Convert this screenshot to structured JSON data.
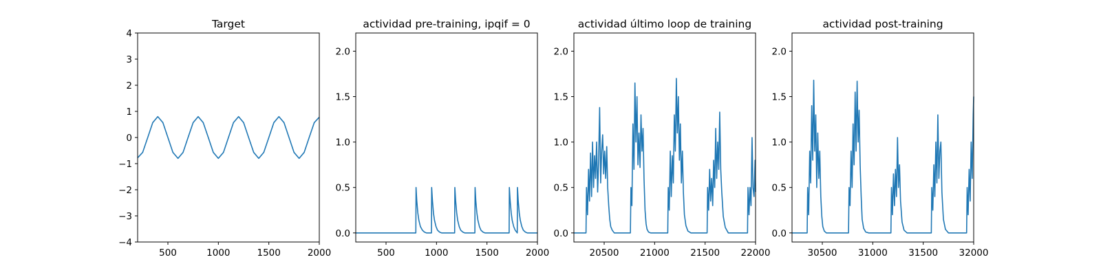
{
  "chart_data": [
    {
      "type": "line",
      "title": "Target",
      "xlabel": "",
      "ylabel": "",
      "xlim": [
        200,
        2000
      ],
      "ylim": [
        -4,
        4
      ],
      "xticks": [
        500,
        1000,
        1500,
        2000
      ],
      "yticks": [
        -4,
        -3,
        -2,
        -1,
        0,
        1,
        2,
        3,
        4
      ],
      "xtick_labels": [
        "500",
        "1000",
        "1500",
        "2000"
      ],
      "ytick_labels": [
        "−4",
        "−3",
        "−2",
        "−1",
        "0",
        "1",
        "2",
        "3",
        "4"
      ],
      "series": [
        {
          "color": "#1f77b4",
          "x": [
            200,
            250,
            300,
            350,
            400,
            450,
            500,
            550,
            600,
            650,
            700,
            750,
            800,
            850,
            900,
            950,
            1000,
            1050,
            1100,
            1150,
            1200,
            1250,
            1300,
            1350,
            1400,
            1450,
            1500,
            1550,
            1600,
            1650,
            1700,
            1750,
            1800,
            1850,
            1900,
            1950,
            2000
          ],
          "y": [
            -0.78,
            -0.57,
            0.0,
            0.57,
            0.8,
            0.57,
            0.0,
            -0.57,
            -0.8,
            -0.57,
            0.0,
            0.57,
            0.8,
            0.57,
            0.0,
            -0.57,
            -0.8,
            -0.57,
            0.0,
            0.57,
            0.8,
            0.57,
            0.0,
            -0.57,
            -0.8,
            -0.57,
            0.0,
            0.57,
            0.8,
            0.57,
            0.0,
            -0.57,
            -0.8,
            -0.57,
            0.0,
            0.57,
            0.78
          ]
        }
      ]
    },
    {
      "type": "line",
      "title": "actividad pre-training, ipqif = 0",
      "xlabel": "",
      "ylabel": "",
      "xlim": [
        200,
        2000
      ],
      "ylim": [
        -0.1,
        2.2
      ],
      "xticks": [
        500,
        1000,
        1500,
        2000
      ],
      "yticks": [
        0.0,
        0.5,
        1.0,
        1.5,
        2.0
      ],
      "xtick_labels": [
        "500",
        "1000",
        "1500",
        "2000"
      ],
      "ytick_labels": [
        "0.0",
        "0.5",
        "1.0",
        "1.5",
        "2.0"
      ],
      "series": [
        {
          "color": "#1f77b4",
          "x": [
            200,
            795,
            797,
            805,
            815,
            825,
            840,
            860,
            880,
            900,
            950,
            952,
            960,
            970,
            980,
            995,
            1010,
            1030,
            1050,
            1180,
            1182,
            1190,
            1200,
            1210,
            1225,
            1240,
            1260,
            1280,
            1300,
            1380,
            1382,
            1390,
            1400,
            1410,
            1425,
            1440,
            1460,
            1480,
            1500,
            1720,
            1722,
            1730,
            1740,
            1750,
            1765,
            1780,
            1800,
            1802,
            1810,
            1820,
            1830,
            1845,
            1860,
            1880,
            1900,
            1920,
            2000
          ],
          "y": [
            0.0,
            0.0,
            0.5,
            0.35,
            0.22,
            0.14,
            0.07,
            0.03,
            0.01,
            0.0,
            0.0,
            0.5,
            0.35,
            0.22,
            0.14,
            0.07,
            0.03,
            0.01,
            0.0,
            0.0,
            0.5,
            0.35,
            0.22,
            0.14,
            0.07,
            0.03,
            0.01,
            0.0,
            0.0,
            0.0,
            0.5,
            0.35,
            0.22,
            0.14,
            0.07,
            0.03,
            0.01,
            0.0,
            0.0,
            0.0,
            0.5,
            0.35,
            0.22,
            0.14,
            0.07,
            0.03,
            0.0,
            0.5,
            0.35,
            0.22,
            0.14,
            0.07,
            0.03,
            0.01,
            0.0,
            0.0,
            0.0
          ]
        }
      ]
    },
    {
      "type": "line",
      "title": "actividad último loop de training",
      "xlabel": "",
      "ylabel": "",
      "xlim": [
        20200,
        22000
      ],
      "ylim": [
        -0.1,
        2.2
      ],
      "xticks": [
        20500,
        21000,
        21500,
        22000
      ],
      "yticks": [
        0.0,
        0.5,
        1.0,
        1.5,
        2.0
      ],
      "xtick_labels": [
        "20500",
        "21000",
        "21500",
        "22000"
      ],
      "ytick_labels": [
        "0.0",
        "0.5",
        "1.0",
        "1.5",
        "2.0"
      ],
      "series": [
        {
          "color": "#1f77b4",
          "x": [
            20200,
            20320,
            20325,
            20335,
            20345,
            20355,
            20365,
            20375,
            20385,
            20395,
            20405,
            20415,
            20425,
            20435,
            20445,
            20455,
            20465,
            20475,
            20485,
            20495,
            20505,
            20515,
            20525,
            20535,
            20545,
            20555,
            20565,
            20580,
            20600,
            20620,
            20650,
            20760,
            20765,
            20775,
            20785,
            20795,
            20805,
            20815,
            20825,
            20835,
            20845,
            20855,
            20865,
            20875,
            20885,
            20895,
            20905,
            20915,
            20925,
            20940,
            20960,
            20990,
            21030,
            21130,
            21135,
            21145,
            21155,
            21165,
            21175,
            21185,
            21195,
            21205,
            21215,
            21225,
            21235,
            21245,
            21255,
            21265,
            21275,
            21285,
            21295,
            21310,
            21330,
            21360,
            21390,
            21520,
            21525,
            21535,
            21545,
            21555,
            21565,
            21575,
            21585,
            21595,
            21605,
            21615,
            21625,
            21635,
            21645,
            21655,
            21665,
            21680,
            21700,
            21730,
            21760,
            21920,
            21925,
            21935,
            21945,
            21955,
            21965,
            21975,
            21985,
            21995,
            22000
          ],
          "y": [
            0.0,
            0.0,
            0.5,
            0.2,
            0.7,
            0.35,
            0.88,
            0.4,
            1.0,
            0.5,
            0.85,
            0.6,
            1.0,
            0.45,
            0.78,
            1.38,
            0.55,
            0.9,
            1.08,
            0.65,
            0.9,
            0.6,
            0.95,
            0.5,
            0.3,
            0.15,
            0.07,
            0.03,
            0.0,
            0.0,
            0.0,
            0.0,
            0.5,
            0.3,
            1.2,
            0.7,
            1.65,
            1.0,
            1.5,
            0.75,
            1.1,
            0.72,
            1.3,
            0.9,
            1.15,
            0.6,
            0.25,
            0.1,
            0.04,
            0.01,
            0.0,
            0.0,
            0.0,
            0.0,
            0.5,
            0.25,
            0.9,
            0.4,
            0.85,
            0.55,
            1.3,
            0.9,
            1.7,
            1.1,
            1.5,
            0.8,
            1.2,
            0.55,
            0.9,
            0.45,
            0.2,
            0.08,
            0.02,
            0.0,
            0.0,
            0.0,
            0.5,
            0.25,
            0.7,
            0.35,
            0.6,
            0.3,
            0.8,
            0.5,
            1.15,
            0.6,
            1.0,
            0.7,
            1.33,
            0.7,
            0.45,
            0.18,
            0.06,
            0.0,
            0.0,
            0.0,
            0.5,
            0.2,
            0.5,
            0.3,
            1.05,
            0.5,
            0.4,
            0.8,
            0.45
          ]
        }
      ]
    },
    {
      "type": "line",
      "title": "actividad post-training",
      "xlabel": "",
      "ylabel": "",
      "xlim": [
        30200,
        32000
      ],
      "ylim": [
        -0.1,
        2.2
      ],
      "xticks": [
        30500,
        31000,
        31500,
        32000
      ],
      "yticks": [
        0.0,
        0.5,
        1.0,
        1.5,
        2.0
      ],
      "xtick_labels": [
        "30500",
        "31000",
        "31500",
        "32000"
      ],
      "ytick_labels": [
        "0.0",
        "0.5",
        "1.0",
        "1.5",
        "2.0"
      ],
      "series": [
        {
          "color": "#1f77b4",
          "x": [
            30200,
            30350,
            30355,
            30365,
            30375,
            30385,
            30395,
            30405,
            30415,
            30425,
            30435,
            30445,
            30455,
            30465,
            30475,
            30485,
            30495,
            30505,
            30520,
            30540,
            30570,
            30600,
            30760,
            30765,
            30775,
            30785,
            30795,
            30805,
            30815,
            30825,
            30835,
            30845,
            30855,
            30865,
            30875,
            30885,
            30895,
            30910,
            30930,
            30960,
            30990,
            31180,
            31185,
            31195,
            31205,
            31215,
            31225,
            31235,
            31245,
            31255,
            31265,
            31275,
            31290,
            31310,
            31340,
            31370,
            31580,
            31585,
            31595,
            31605,
            31615,
            31625,
            31635,
            31645,
            31655,
            31665,
            31675,
            31685,
            31700,
            31720,
            31750,
            31780,
            31930,
            31935,
            31945,
            31955,
            31965,
            31975,
            31985,
            31995,
            32000
          ],
          "y": [
            0.0,
            0.0,
            0.5,
            0.2,
            0.9,
            0.55,
            1.4,
            0.8,
            1.68,
            0.9,
            1.3,
            0.5,
            1.1,
            0.6,
            0.9,
            0.4,
            0.18,
            0.07,
            0.02,
            0.0,
            0.0,
            0.0,
            0.0,
            0.5,
            0.3,
            0.9,
            0.5,
            1.2,
            0.75,
            1.55,
            0.9,
            1.67,
            1.0,
            1.35,
            0.75,
            0.4,
            0.15,
            0.05,
            0.01,
            0.0,
            0.0,
            0.0,
            0.5,
            0.2,
            0.65,
            0.3,
            0.7,
            0.4,
            1.05,
            0.5,
            0.75,
            0.35,
            0.12,
            0.03,
            0.0,
            0.0,
            0.0,
            0.5,
            0.25,
            0.75,
            0.4,
            1.0,
            0.55,
            1.3,
            0.6,
            0.9,
            1.0,
            0.45,
            0.15,
            0.04,
            0.0,
            0.0,
            0.0,
            0.5,
            0.2,
            0.7,
            0.35,
            1.0,
            0.6,
            1.3,
            1.5
          ]
        }
      ]
    }
  ]
}
